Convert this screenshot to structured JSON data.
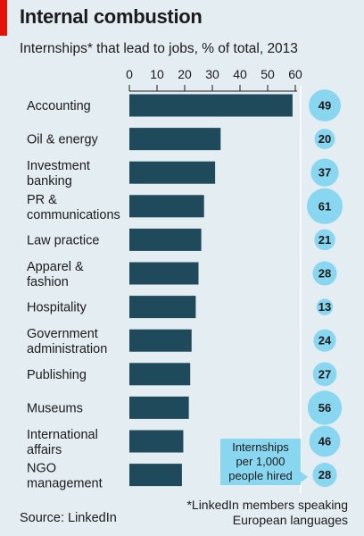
{
  "header": {
    "title": "Internal combustion",
    "subtitle": "Internships* that lead to jobs, % of total, 2013"
  },
  "callout": {
    "line1": "Internships",
    "line2": "per 1,000",
    "line3": "people hired"
  },
  "footer": {
    "source": "Source: LinkedIn",
    "footnote_line1": "*LinkedIn members speaking",
    "footnote_line2": "European languages"
  },
  "colors": {
    "bar": "#1f4a5c",
    "bubble": "#89d6f0",
    "background": "#e3edf2",
    "accent": "#e3120b"
  },
  "chart_data": {
    "type": "bar",
    "orientation": "horizontal",
    "title": "Internal combustion",
    "subtitle": "Internships* that lead to jobs, % of total, 2013",
    "xlim": [
      0,
      60
    ],
    "xticks": [
      0,
      10,
      20,
      30,
      40,
      50,
      60
    ],
    "categories": [
      [
        "Accounting"
      ],
      [
        "Oil & energy"
      ],
      [
        "Investment",
        "banking"
      ],
      [
        "PR &",
        "communications"
      ],
      [
        "Law practice"
      ],
      [
        "Apparel &",
        "fashion"
      ],
      [
        "Hospitality"
      ],
      [
        "Government",
        "administration"
      ],
      [
        "Publishing"
      ],
      [
        "Museums"
      ],
      [
        "International",
        "affairs"
      ],
      [
        "NGO",
        "management"
      ]
    ],
    "values": [
      59,
      33,
      31,
      27,
      26,
      25,
      24,
      22.5,
      22,
      21.5,
      19.5,
      19
    ],
    "bubble_series": {
      "name": "Internships per 1,000 people hired",
      "values": [
        49,
        20,
        37,
        61,
        21,
        28,
        13,
        24,
        27,
        56,
        46,
        28
      ]
    }
  }
}
